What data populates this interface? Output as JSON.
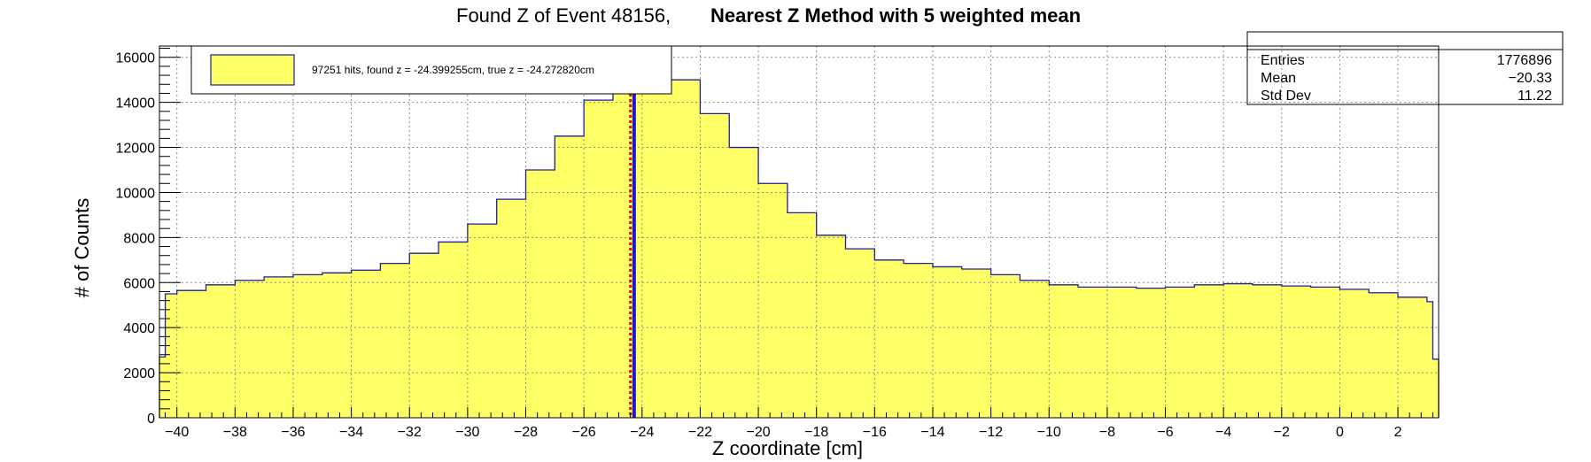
{
  "chart_data": {
    "type": "bar",
    "title_regular": "Found Z of Event 48156,",
    "title_bold": "Nearest Z Method with 5 weighted mean",
    "xlabel": "Z coordinate [cm]",
    "ylabel": "# of Counts",
    "xlim": [
      -40.6,
      3.4
    ],
    "ylim": [
      0,
      16500
    ],
    "grid": true,
    "x_ticks": [
      -40,
      -38,
      -36,
      -34,
      -32,
      -30,
      -28,
      -26,
      -24,
      -22,
      -20,
      -18,
      -16,
      -14,
      -12,
      -10,
      -8,
      -6,
      -4,
      -2,
      0,
      2
    ],
    "x_tick_labels": [
      "−40",
      "−38",
      "−36",
      "−34",
      "−32",
      "−30",
      "−28",
      "−26",
      "−24",
      "−22",
      "−20",
      "−18",
      "−16",
      "−14",
      "−12",
      "−10",
      "−8",
      "−6",
      "−4",
      "−2",
      "0",
      "2"
    ],
    "y_ticks": [
      0,
      2000,
      4000,
      6000,
      8000,
      10000,
      12000,
      14000,
      16000
    ],
    "y_tick_labels": [
      "0",
      "2000",
      "4000",
      "6000",
      "8000",
      "10000",
      "12000",
      "14000",
      "16000"
    ],
    "histogram_points": [
      {
        "x": -40.6,
        "y": 2700
      },
      {
        "x": -40.4,
        "y": 5500
      },
      {
        "x": -40.0,
        "y": 5650
      },
      {
        "x": -39.0,
        "y": 5900
      },
      {
        "x": -38.0,
        "y": 6100
      },
      {
        "x": -37.0,
        "y": 6250
      },
      {
        "x": -36.0,
        "y": 6350
      },
      {
        "x": -35.0,
        "y": 6430
      },
      {
        "x": -34.0,
        "y": 6550
      },
      {
        "x": -33.0,
        "y": 6850
      },
      {
        "x": -32.0,
        "y": 7300
      },
      {
        "x": -31.0,
        "y": 7800
      },
      {
        "x": -30.0,
        "y": 8600
      },
      {
        "x": -29.0,
        "y": 9700
      },
      {
        "x": -28.0,
        "y": 11000
      },
      {
        "x": -27.0,
        "y": 12500
      },
      {
        "x": -26.0,
        "y": 14100
      },
      {
        "x": -25.0,
        "y": 15300
      },
      {
        "x": -24.3,
        "y": 16000
      },
      {
        "x": -24.0,
        "y": 15900
      },
      {
        "x": -23.0,
        "y": 15000
      },
      {
        "x": -22.0,
        "y": 13500
      },
      {
        "x": -21.0,
        "y": 12000
      },
      {
        "x": -20.0,
        "y": 10400
      },
      {
        "x": -19.0,
        "y": 9100
      },
      {
        "x": -18.0,
        "y": 8100
      },
      {
        "x": -17.0,
        "y": 7500
      },
      {
        "x": -16.0,
        "y": 7000
      },
      {
        "x": -15.0,
        "y": 6850
      },
      {
        "x": -14.0,
        "y": 6700
      },
      {
        "x": -13.0,
        "y": 6600
      },
      {
        "x": -12.0,
        "y": 6350
      },
      {
        "x": -11.0,
        "y": 6100
      },
      {
        "x": -10.0,
        "y": 5900
      },
      {
        "x": -9.0,
        "y": 5800
      },
      {
        "x": -8.0,
        "y": 5800
      },
      {
        "x": -7.0,
        "y": 5750
      },
      {
        "x": -6.0,
        "y": 5800
      },
      {
        "x": -5.0,
        "y": 5900
      },
      {
        "x": -4.0,
        "y": 5950
      },
      {
        "x": -3.0,
        "y": 5900
      },
      {
        "x": -2.0,
        "y": 5850
      },
      {
        "x": -1.0,
        "y": 5800
      },
      {
        "x": 0.0,
        "y": 5700
      },
      {
        "x": 1.0,
        "y": 5550
      },
      {
        "x": 2.0,
        "y": 5350
      },
      {
        "x": 3.0,
        "y": 5150
      },
      {
        "x": 3.2,
        "y": 2600
      },
      {
        "x": 3.4,
        "y": 2600
      }
    ],
    "found_z": -24.399255,
    "true_z": -24.27282,
    "legend_text": "97251 hits, found z = -24.399255cm, true z = -24.272820cm",
    "stats": {
      "rows": [
        {
          "label": "Entries",
          "value": "1776896"
        },
        {
          "label": "Mean",
          "value": "−20.33"
        },
        {
          "label": "Std Dev",
          "value": "11.22"
        }
      ]
    },
    "colors": {
      "fill": "#ffff66",
      "outline": "#1f1f9a",
      "found_line": "#cc1111",
      "true_line": "#1a1acc",
      "grid": "#8c8c8c"
    }
  }
}
